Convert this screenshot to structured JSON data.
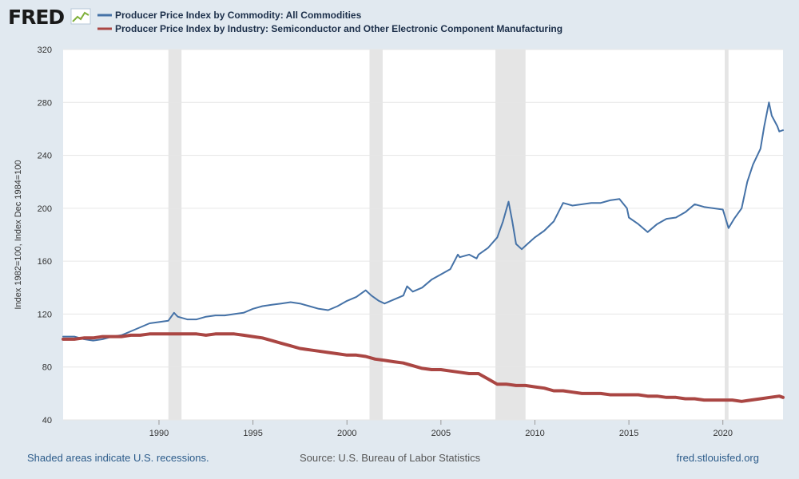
{
  "header": {
    "logo_text": "FRED",
    "legend": [
      {
        "label": "Producer Price Index by Commodity: All Commodities",
        "color": "#4572a7"
      },
      {
        "label": "Producer Price Index by Industry: Semiconductor and Other Electronic Component Manufacturing",
        "color": "#aa4643"
      }
    ]
  },
  "footer": {
    "recession_note": "Shaded areas indicate U.S. recessions.",
    "source": "Source: U.S. Bureau of Labor Statistics",
    "website": "fred.stlouisfed.org"
  },
  "colors": {
    "background": "#e1e9f0",
    "plot_background": "#ffffff",
    "recession_shade": "#e5e5e5",
    "grid": "#e6e6e6",
    "footer_text": "#2b5b8a",
    "footer_source": "#555555"
  },
  "chart_data": {
    "type": "line",
    "ylabel": "Index 1982=100, Index Dec 1984=100",
    "xlim": [
      1984.9,
      2023.2
    ],
    "ylim": [
      40,
      320
    ],
    "x_ticks": [
      1990,
      1995,
      2000,
      2005,
      2010,
      2015,
      2020
    ],
    "y_ticks": [
      40,
      80,
      120,
      160,
      200,
      240,
      280,
      320
    ],
    "grid": "horizontal",
    "legend_position": "top-left",
    "recessions": [
      [
        1990.5,
        1991.2
      ],
      [
        2001.2,
        2001.9
      ],
      [
        2007.9,
        2009.5
      ],
      [
        2020.1,
        2020.3
      ]
    ],
    "series": [
      {
        "name": "Producer Price Index by Commodity: All Commodities",
        "color": "#4572a7",
        "points": [
          [
            1984.9,
            103
          ],
          [
            1985.5,
            103
          ],
          [
            1986.0,
            101
          ],
          [
            1986.5,
            100
          ],
          [
            1987.0,
            101
          ],
          [
            1987.5,
            103
          ],
          [
            1988.0,
            104
          ],
          [
            1988.5,
            107
          ],
          [
            1989.0,
            110
          ],
          [
            1989.5,
            113
          ],
          [
            1990.0,
            114
          ],
          [
            1990.5,
            115
          ],
          [
            1990.8,
            121
          ],
          [
            1991.0,
            118
          ],
          [
            1991.5,
            116
          ],
          [
            1992.0,
            116
          ],
          [
            1992.5,
            118
          ],
          [
            1993.0,
            119
          ],
          [
            1993.5,
            119
          ],
          [
            1994.0,
            120
          ],
          [
            1994.5,
            121
          ],
          [
            1995.0,
            124
          ],
          [
            1995.5,
            126
          ],
          [
            1996.0,
            127
          ],
          [
            1996.5,
            128
          ],
          [
            1997.0,
            129
          ],
          [
            1997.5,
            128
          ],
          [
            1998.0,
            126
          ],
          [
            1998.5,
            124
          ],
          [
            1999.0,
            123
          ],
          [
            1999.5,
            126
          ],
          [
            2000.0,
            130
          ],
          [
            2000.5,
            133
          ],
          [
            2001.0,
            138
          ],
          [
            2001.3,
            134
          ],
          [
            2001.7,
            130
          ],
          [
            2002.0,
            128
          ],
          [
            2002.5,
            131
          ],
          [
            2003.0,
            134
          ],
          [
            2003.2,
            141
          ],
          [
            2003.5,
            137
          ],
          [
            2004.0,
            140
          ],
          [
            2004.5,
            146
          ],
          [
            2005.0,
            150
          ],
          [
            2005.5,
            154
          ],
          [
            2005.9,
            165
          ],
          [
            2006.0,
            163
          ],
          [
            2006.5,
            165
          ],
          [
            2006.9,
            162
          ],
          [
            2007.0,
            165
          ],
          [
            2007.5,
            170
          ],
          [
            2008.0,
            178
          ],
          [
            2008.3,
            190
          ],
          [
            2008.6,
            205
          ],
          [
            2008.8,
            190
          ],
          [
            2009.0,
            173
          ],
          [
            2009.3,
            169
          ],
          [
            2009.6,
            173
          ],
          [
            2010.0,
            178
          ],
          [
            2010.5,
            183
          ],
          [
            2011.0,
            190
          ],
          [
            2011.5,
            204
          ],
          [
            2012.0,
            202
          ],
          [
            2012.5,
            203
          ],
          [
            2013.0,
            204
          ],
          [
            2013.5,
            204
          ],
          [
            2014.0,
            206
          ],
          [
            2014.5,
            207
          ],
          [
            2014.9,
            200
          ],
          [
            2015.0,
            193
          ],
          [
            2015.5,
            188
          ],
          [
            2016.0,
            182
          ],
          [
            2016.5,
            188
          ],
          [
            2017.0,
            192
          ],
          [
            2017.5,
            193
          ],
          [
            2018.0,
            197
          ],
          [
            2018.5,
            203
          ],
          [
            2019.0,
            201
          ],
          [
            2019.5,
            200
          ],
          [
            2020.0,
            199
          ],
          [
            2020.3,
            185
          ],
          [
            2020.6,
            192
          ],
          [
            2021.0,
            200
          ],
          [
            2021.3,
            220
          ],
          [
            2021.6,
            233
          ],
          [
            2022.0,
            245
          ],
          [
            2022.2,
            262
          ],
          [
            2022.45,
            280
          ],
          [
            2022.6,
            270
          ],
          [
            2022.9,
            262
          ],
          [
            2023.0,
            258
          ],
          [
            2023.2,
            259
          ]
        ]
      },
      {
        "name": "Producer Price Index by Industry: Semiconductor and Other Electronic Component Manufacturing",
        "color": "#aa4643",
        "points": [
          [
            1984.9,
            101
          ],
          [
            1985.5,
            101
          ],
          [
            1986.0,
            102
          ],
          [
            1986.5,
            102
          ],
          [
            1987.0,
            103
          ],
          [
            1987.5,
            103
          ],
          [
            1988.0,
            103
          ],
          [
            1988.5,
            104
          ],
          [
            1989.0,
            104
          ],
          [
            1989.5,
            105
          ],
          [
            1990.0,
            105
          ],
          [
            1990.5,
            105
          ],
          [
            1991.0,
            105
          ],
          [
            1991.5,
            105
          ],
          [
            1992.0,
            105
          ],
          [
            1992.5,
            104
          ],
          [
            1993.0,
            105
          ],
          [
            1993.5,
            105
          ],
          [
            1994.0,
            105
          ],
          [
            1994.5,
            104
          ],
          [
            1995.0,
            103
          ],
          [
            1995.5,
            102
          ],
          [
            1996.0,
            100
          ],
          [
            1996.5,
            98
          ],
          [
            1997.0,
            96
          ],
          [
            1997.5,
            94
          ],
          [
            1998.0,
            93
          ],
          [
            1998.5,
            92
          ],
          [
            1999.0,
            91
          ],
          [
            1999.5,
            90
          ],
          [
            2000.0,
            89
          ],
          [
            2000.5,
            89
          ],
          [
            2001.0,
            88
          ],
          [
            2001.5,
            86
          ],
          [
            2002.0,
            85
          ],
          [
            2002.5,
            84
          ],
          [
            2003.0,
            83
          ],
          [
            2003.5,
            81
          ],
          [
            2004.0,
            79
          ],
          [
            2004.5,
            78
          ],
          [
            2005.0,
            78
          ],
          [
            2005.5,
            77
          ],
          [
            2006.0,
            76
          ],
          [
            2006.5,
            75
          ],
          [
            2007.0,
            75
          ],
          [
            2007.5,
            71
          ],
          [
            2008.0,
            67
          ],
          [
            2008.5,
            67
          ],
          [
            2009.0,
            66
          ],
          [
            2009.5,
            66
          ],
          [
            2010.0,
            65
          ],
          [
            2010.5,
            64
          ],
          [
            2011.0,
            62
          ],
          [
            2011.5,
            62
          ],
          [
            2012.0,
            61
          ],
          [
            2012.5,
            60
          ],
          [
            2013.0,
            60
          ],
          [
            2013.5,
            60
          ],
          [
            2014.0,
            59
          ],
          [
            2014.5,
            59
          ],
          [
            2015.0,
            59
          ],
          [
            2015.5,
            59
          ],
          [
            2016.0,
            58
          ],
          [
            2016.5,
            58
          ],
          [
            2017.0,
            57
          ],
          [
            2017.5,
            57
          ],
          [
            2018.0,
            56
          ],
          [
            2018.5,
            56
          ],
          [
            2019.0,
            55
          ],
          [
            2019.5,
            55
          ],
          [
            2020.0,
            55
          ],
          [
            2020.5,
            55
          ],
          [
            2021.0,
            54
          ],
          [
            2021.5,
            55
          ],
          [
            2022.0,
            56
          ],
          [
            2022.5,
            57
          ],
          [
            2023.0,
            58
          ],
          [
            2023.2,
            57
          ]
        ]
      }
    ]
  }
}
